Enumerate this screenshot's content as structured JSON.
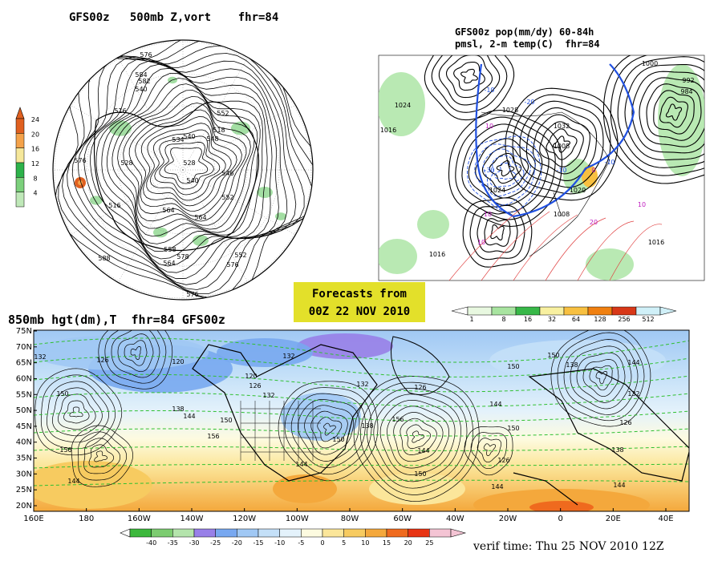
{
  "panel_top_left": {
    "title": "GFS00z   500mb Z,vort    fhr=84",
    "colorbar_ticks": [
      "24",
      "20",
      "16",
      "12",
      "8",
      "4"
    ],
    "colorbar_colors": [
      "#e06020",
      "#f4a24a",
      "#f5e79a",
      "#2db24a",
      "#7cd07c",
      "#bfe8b8"
    ],
    "contour_labels": [
      "576",
      "584",
      "582",
      "540",
      "516",
      "552",
      "534",
      "548",
      "518",
      "540",
      "576",
      "528",
      "516",
      "528",
      "540",
      "552",
      "564",
      "578",
      "576",
      "558",
      "564",
      "576",
      "588",
      "546",
      "552",
      "564"
    ]
  },
  "panel_top_right": {
    "title_line1": "GFS00z pop(mm/dy) 60-84h",
    "title_line2": "pmsl, 2-m temp(C)  fhr=84",
    "colorbar_ticks": [
      "1",
      "8",
      "16",
      "32",
      "64",
      "128",
      "256",
      "512"
    ],
    "colorbar_colors": [
      "#e8f8e0",
      "#a8e4a0",
      "#38b848",
      "#f8f0a0",
      "#f8c040",
      "#f08010",
      "#d83818",
      "#d0f0f8"
    ],
    "contour_labels": [
      "1024",
      "1016",
      "1028",
      "1032",
      "1008",
      "1020",
      "1000",
      "992",
      "984",
      "1024",
      "1016",
      "1008",
      "1016"
    ],
    "temp_labels": [
      "-10",
      "-20",
      "-30",
      "10",
      "-10",
      "0",
      "-10",
      "10",
      "10",
      "20",
      "10"
    ]
  },
  "forecast_box": {
    "line1": "Forecasts from",
    "line2": "00Z 22 NOV 2010"
  },
  "panel_bottom": {
    "title": "850mb hgt(dm),T  fhr=84 GFS00z",
    "lat_labels": [
      "75N",
      "70N",
      "65N",
      "60N",
      "55N",
      "50N",
      "45N",
      "40N",
      "35N",
      "30N",
      "25N",
      "20N"
    ],
    "lon_labels": [
      "160E",
      "180",
      "160W",
      "140W",
      "120W",
      "100W",
      "80W",
      "60W",
      "40W",
      "20W",
      "0",
      "20E",
      "40E"
    ],
    "height_labels": [
      "132",
      "126",
      "120",
      "150",
      "120",
      "126",
      "132",
      "138",
      "144",
      "150",
      "156",
      "144",
      "150",
      "156",
      "144",
      "138",
      "156",
      "132",
      "126",
      "144",
      "150",
      "144",
      "150",
      "126",
      "144",
      "150",
      "138",
      "144",
      "132",
      "126",
      "138",
      "144",
      "150",
      "132"
    ],
    "colorbar_ticks": [
      "-40",
      "-35",
      "-30",
      "-25",
      "-20",
      "-15",
      "-10",
      "-5",
      "0",
      "5",
      "10",
      "15",
      "20",
      "25"
    ],
    "colorbar_colors": [
      "#3cb83c",
      "#7ccc70",
      "#b4e4ac",
      "#9880e8",
      "#78a8f0",
      "#a0c8f4",
      "#c4e0f8",
      "#e4f2fb",
      "#fdfbe0",
      "#fbe69a",
      "#f7cb60",
      "#f4a83c",
      "#ef6a1e",
      "#e83414",
      "#f4c4d4"
    ]
  },
  "verif_time": "verif time: Thu 25 NOV 2010 12Z"
}
